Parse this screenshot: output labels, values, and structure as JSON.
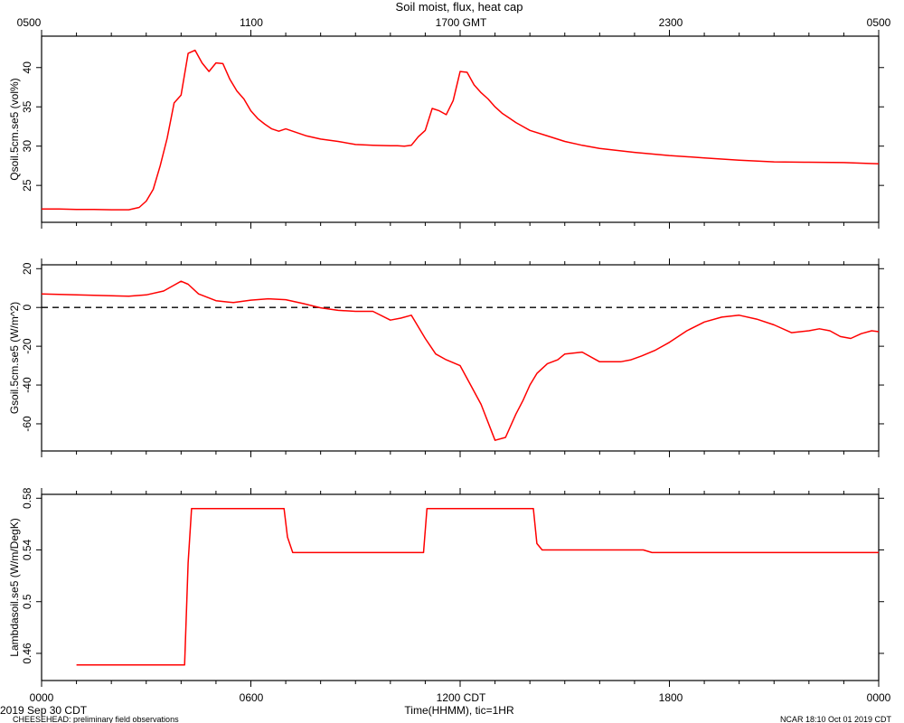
{
  "header": {
    "title": "Soil moist, flux, heat cap",
    "top_tick_labels": [
      "0500",
      "1100",
      "1700 GMT",
      "2300",
      "0500"
    ]
  },
  "footer": {
    "date_label": "2019 Sep 30 CDT",
    "project_label": "CHEESEHEAD: preliminary field observations",
    "credit_label": "NCAR 18:10 Oct 01 2019 CDT",
    "xlabel": "Time(HHMM), tic=1HR",
    "bottom_tick_labels": [
      "0000",
      "0600",
      "1200 CDT",
      "1800",
      "0000"
    ]
  },
  "colors": {
    "series": "#ff0000",
    "axis": "#000000",
    "zero_line": "#000000"
  },
  "chart_data": [
    {
      "type": "line",
      "ylabel": "Qsoil.5cm.se5 (vol%)",
      "xlim": [
        0,
        24
      ],
      "ylim": [
        20.3,
        44.0
      ],
      "yticks": [
        25,
        30,
        35,
        40
      ],
      "grid": false,
      "series": [
        {
          "x": [
            0,
            0.5,
            1,
            1.5,
            2,
            2.5,
            2.8,
            3,
            3.2,
            3.4,
            3.6,
            3.8,
            4,
            4.2,
            4.4,
            4.6,
            4.8,
            5,
            5.2,
            5.4,
            5.6,
            5.8,
            6,
            6.2,
            6.4,
            6.6,
            6.8,
            7,
            7.2,
            7.4,
            7.6,
            7.8,
            8,
            8.5,
            9,
            9.5,
            10,
            10.2,
            10.4,
            10.6,
            10.8,
            11,
            11.2,
            11.4,
            11.6,
            11.8,
            12,
            12.2,
            12.4,
            12.6,
            12.8,
            13,
            13.2,
            13.4,
            13.6,
            13.8,
            14,
            14.5,
            15,
            15.5,
            16,
            17,
            18,
            19,
            20,
            21,
            22,
            23,
            24
          ],
          "y": [
            22,
            22,
            21.95,
            21.95,
            21.9,
            21.9,
            22.2,
            23,
            24.5,
            27.5,
            31,
            35.5,
            36.5,
            41.8,
            42.2,
            40.6,
            39.5,
            40.6,
            40.5,
            38.5,
            37,
            36,
            34.5,
            33.5,
            32.8,
            32.2,
            31.9,
            32.2,
            31.9,
            31.6,
            31.3,
            31.1,
            30.9,
            30.6,
            30.2,
            30.1,
            30.05,
            30.05,
            30,
            30.1,
            31.2,
            32,
            34.8,
            34.5,
            34,
            35.8,
            39.5,
            39.4,
            37.8,
            36.8,
            36,
            35,
            34.2,
            33.6,
            33,
            32.5,
            32,
            31.3,
            30.6,
            30.1,
            29.7,
            29.2,
            28.8,
            28.5,
            28.2,
            28,
            27.95,
            27.9,
            27.75
          ]
        }
      ]
    },
    {
      "type": "line",
      "ylabel": "Gsoil.5cm.se5 (W/m^2)",
      "xlim": [
        0,
        24
      ],
      "ylim": [
        -74.0,
        22.0
      ],
      "yticks": [
        20,
        0,
        -20,
        -40,
        -60
      ],
      "reference_line": 0,
      "grid": false,
      "series": [
        {
          "x": [
            0,
            1,
            2,
            2.5,
            3,
            3.5,
            3.8,
            4,
            4.2,
            4.5,
            5,
            5.5,
            6,
            6.5,
            7,
            7.5,
            8,
            8.5,
            9,
            9.5,
            10,
            10.3,
            10.6,
            11,
            11.3,
            11.6,
            12,
            12.3,
            12.6,
            13,
            13.3,
            13.6,
            13.8,
            14,
            14.2,
            14.5,
            14.8,
            15,
            15.5,
            16,
            16.3,
            16.6,
            16.9,
            17.2,
            17.6,
            18,
            18.5,
            19,
            19.5,
            20,
            20.5,
            21,
            21.5,
            22,
            22.3,
            22.6,
            22.9,
            23.2,
            23.5,
            23.8,
            24
          ],
          "y": [
            7,
            6.5,
            6,
            5.8,
            6.5,
            8.5,
            11.5,
            13.5,
            12,
            7,
            3.5,
            2.5,
            3.8,
            4.5,
            4,
            2,
            -0.2,
            -1.5,
            -2,
            -2,
            -6.5,
            -5.5,
            -4,
            -16,
            -24,
            -27,
            -30,
            -40,
            -50,
            -68.5,
            -67,
            -55,
            -48,
            -40,
            -34,
            -29,
            -27,
            -24,
            -23,
            -28,
            -28,
            -28,
            -27,
            -25,
            -22,
            -18,
            -12,
            -7.5,
            -5,
            -4,
            -6,
            -9,
            -13,
            -12,
            -11,
            -12,
            -15,
            -16,
            -13.5,
            -12,
            -12.5
          ]
        }
      ]
    },
    {
      "type": "line",
      "ylabel": "Lambdasoil.se5 (W/m/DegK)",
      "xlim": [
        0,
        24
      ],
      "ylim": [
        0.439,
        0.583
      ],
      "yticks": [
        0.46,
        0.5,
        0.54,
        0.58
      ],
      "grid": false,
      "series": [
        {
          "x": [
            1,
            4.1,
            4.2,
            4.3,
            6.95,
            7.05,
            7.2,
            10.95,
            11.05,
            14.1,
            14.2,
            14.35,
            17.25,
            17.5,
            24
          ],
          "y": [
            0.451,
            0.451,
            0.53,
            0.572,
            0.572,
            0.55,
            0.538,
            0.538,
            0.572,
            0.572,
            0.545,
            0.54,
            0.54,
            0.538,
            0.538
          ]
        }
      ]
    }
  ]
}
